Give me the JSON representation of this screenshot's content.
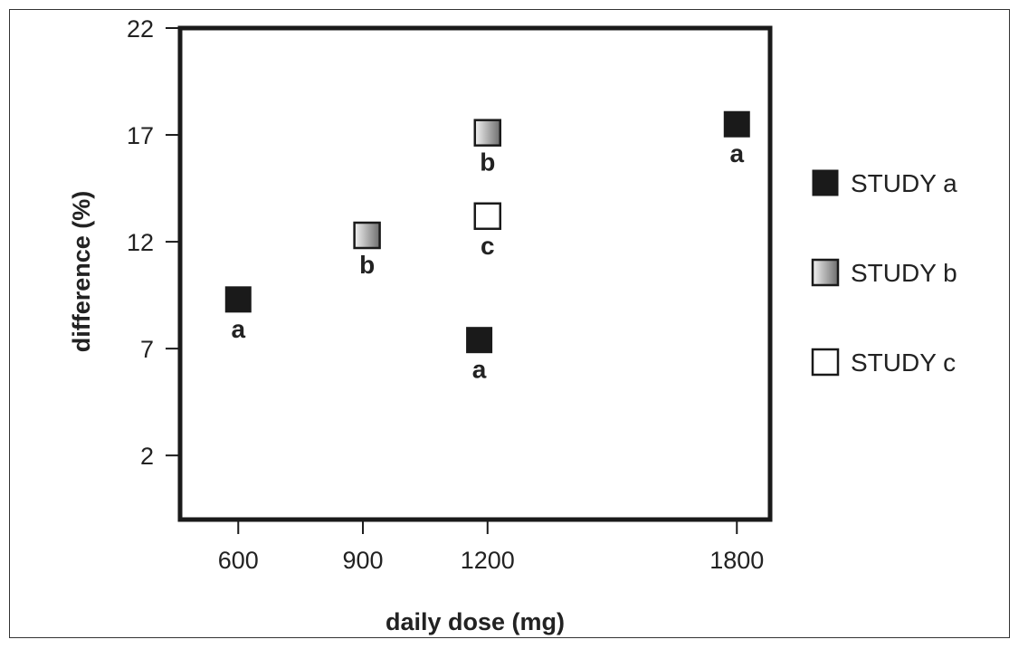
{
  "chart_data": {
    "type": "scatter",
    "title": "",
    "xlabel": "daily dose (mg)",
    "ylabel": "difference (%)",
    "x_ticks": [
      600,
      900,
      1200,
      1800
    ],
    "y_ticks": [
      2,
      7,
      12,
      17,
      22
    ],
    "xlim": [
      460,
      1880
    ],
    "ylim": [
      -1,
      22
    ],
    "grid": false,
    "legend_position": "right",
    "series": [
      {
        "name": "STUDY a",
        "marker": "solid",
        "fill_color": "#1a1a1a",
        "points": [
          {
            "x": 600,
            "y": 9.3,
            "label": "a"
          },
          {
            "x": 1180,
            "y": 7.4,
            "label": "a"
          },
          {
            "x": 1800,
            "y": 17.5,
            "label": "a"
          }
        ]
      },
      {
        "name": "STUDY b",
        "marker": "gradient",
        "fill_color": "#9a9a9a",
        "points": [
          {
            "x": 910,
            "y": 12.3,
            "label": "b"
          },
          {
            "x": 1200,
            "y": 17.1,
            "label": "b"
          }
        ]
      },
      {
        "name": "STUDY c",
        "marker": "hollow",
        "fill_color": "#ffffff",
        "points": [
          {
            "x": 1200,
            "y": 13.2,
            "label": "c"
          }
        ]
      }
    ]
  }
}
